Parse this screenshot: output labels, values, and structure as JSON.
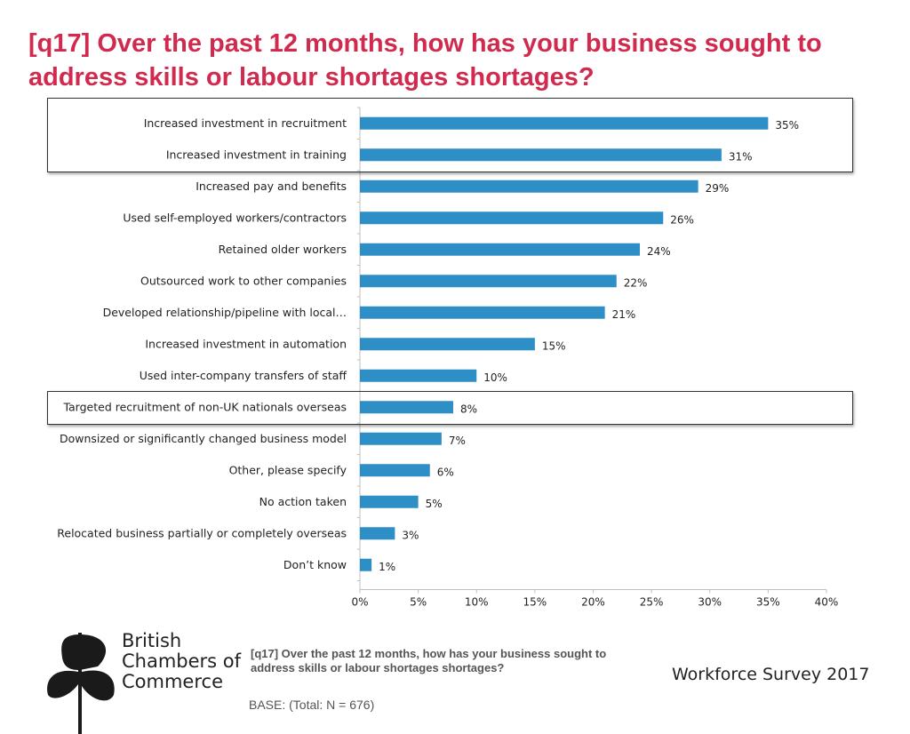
{
  "title": "[q17] Over the past 12 months, how has your business sought to address skills or labour shortages shortages?",
  "colors": {
    "title": "#d12a4f",
    "bar": "#2e8ec6",
    "axis": "#bfbfbf",
    "highlight_border": "#333333"
  },
  "chart_data": {
    "type": "bar",
    "orientation": "horizontal",
    "categories": [
      "Increased investment in recruitment",
      "Increased investment in training",
      "Increased pay and benefits",
      "Used self-employed workers/contractors",
      "Retained older workers",
      "Outsourced work to other companies",
      "Developed relationship/pipeline with local…",
      "Increased investment in automation",
      "Used inter-company transfers of staff",
      "Targeted recruitment of non-UK nationals overseas",
      "Downsized or significantly changed business model",
      "Other, please specify",
      "No action taken",
      "Relocated business partially or completely overseas",
      "Don’t know"
    ],
    "values": [
      35,
      31,
      29,
      26,
      24,
      22,
      21,
      15,
      10,
      8,
      7,
      6,
      5,
      3,
      1
    ],
    "value_labels": [
      "35%",
      "31%",
      "29%",
      "26%",
      "24%",
      "22%",
      "21%",
      "15%",
      "10%",
      "8%",
      "7%",
      "6%",
      "5%",
      "3%",
      "1%"
    ],
    "xlim": [
      0,
      40
    ],
    "xticks": [
      0,
      5,
      10,
      15,
      20,
      25,
      30,
      35,
      40
    ],
    "xtick_labels": [
      "0%",
      "5%",
      "10%",
      "15%",
      "20%",
      "25%",
      "30%",
      "35%",
      "40%"
    ],
    "grid": false,
    "highlighted_categories": [
      "Increased investment in recruitment",
      "Increased investment in training",
      "Targeted recruitment of non-UK nationals overseas"
    ]
  },
  "logo": {
    "lines": [
      "British",
      "Chambers of",
      "Commerce"
    ],
    "icon": "bcc-leaf-logo-icon"
  },
  "footer": {
    "question": "[q17] Over the past 12 months, how has your business sought to address skills or labour shortages shortages?",
    "survey_name": "Workforce Survey 2017",
    "base": "BASE: (Total: N = 676)"
  }
}
